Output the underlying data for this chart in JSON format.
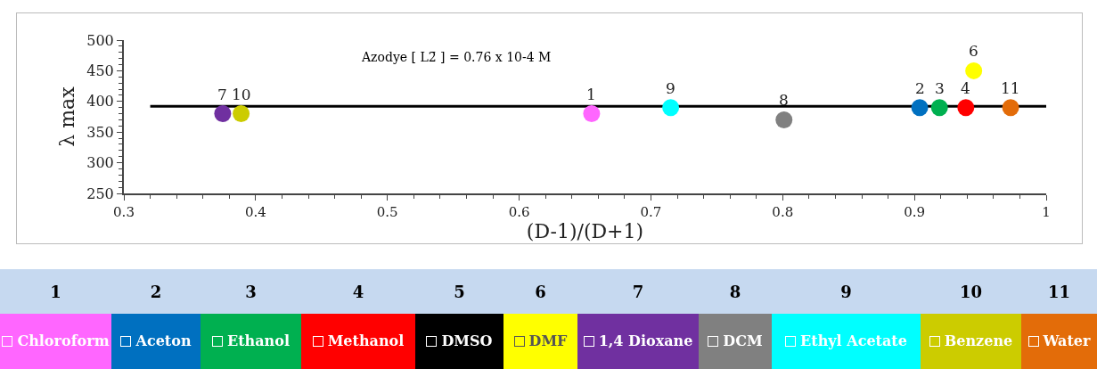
{
  "chart_data": {
    "type": "scatter",
    "title": "Azodye [ L2̄ ] = 0.76 x 10-4 M",
    "xlabel": "(D-1)/(D+1)",
    "ylabel": "λ max",
    "xlim": [
      0.3,
      1
    ],
    "xticks": [
      0.3,
      0.4,
      0.5,
      0.6,
      0.7,
      0.8,
      0.9,
      {
        "value": 1,
        "label": "1"
      }
    ],
    "ylim": [
      250,
      500
    ],
    "yticks": [
      250,
      300,
      350,
      400,
      450,
      500
    ],
    "grid": false,
    "marker": "circle",
    "legend": "bottom",
    "series": [
      {
        "name": "Chloroform",
        "color": "#ff66ff",
        "x": [
          0.655
        ],
        "values": [
          380
        ]
      },
      {
        "name": "Aceton",
        "color": "#0070c0",
        "x": [
          0.904
        ],
        "values": [
          390
        ]
      },
      {
        "name": "Ethanol",
        "color": "#00b050",
        "x": [
          0.919
        ],
        "values": [
          390
        ]
      },
      {
        "name": "Methanol",
        "color": "#ff0000",
        "x": [
          0.939
        ],
        "values": [
          390
        ]
      },
      {
        "name": "DMSO",
        "color": "#000000",
        "x": [
          null
        ],
        "values": [
          null
        ]
      },
      {
        "name": "DMF",
        "color": "#ffff00",
        "x": [
          0.945
        ],
        "values": [
          450
        ]
      },
      {
        "name": "1,4 Dioxane",
        "color": "#7030a0",
        "x": [
          0.375
        ],
        "values": [
          380
        ]
      },
      {
        "name": "DCM",
        "color": "#808080",
        "x": [
          0.801
        ],
        "values": [
          370
        ]
      },
      {
        "name": "Ethyl Acetate",
        "color": "#00ffff",
        "x": [
          0.715
        ],
        "values": [
          390
        ]
      },
      {
        "name": "Benzene",
        "color": "#cccc00",
        "x": [
          0.389
        ],
        "values": [
          380
        ]
      },
      {
        "name": "Water",
        "color": "#e36c09",
        "x": [
          0.973
        ],
        "values": [
          390
        ]
      },
      {
        "type": "line",
        "marker": "none",
        "color": "#000000",
        "x": [
          0.32,
          1.0
        ],
        "values": [
          392,
          392
        ]
      }
    ],
    "annotations": [
      {
        "text": "1",
        "x": 0.655,
        "y": 380
      },
      {
        "text": "2",
        "x": 0.904,
        "y": 390
      },
      {
        "text": "3",
        "x": 0.919,
        "y": 390
      },
      {
        "text": "4",
        "x": 0.939,
        "y": 390
      },
      "5",
      {
        "text": "6",
        "x": 0.945,
        "y": 450
      },
      {
        "text": "7",
        "x": 0.375,
        "y": 380
      },
      {
        "text": "8",
        "x": 0.801,
        "y": 370
      },
      {
        "text": "9",
        "x": 0.715,
        "y": 390
      },
      {
        "text": "10",
        "x": 0.389,
        "y": 380
      },
      {
        "text": "11",
        "x": 0.973,
        "y": 390
      }
    ]
  }
}
